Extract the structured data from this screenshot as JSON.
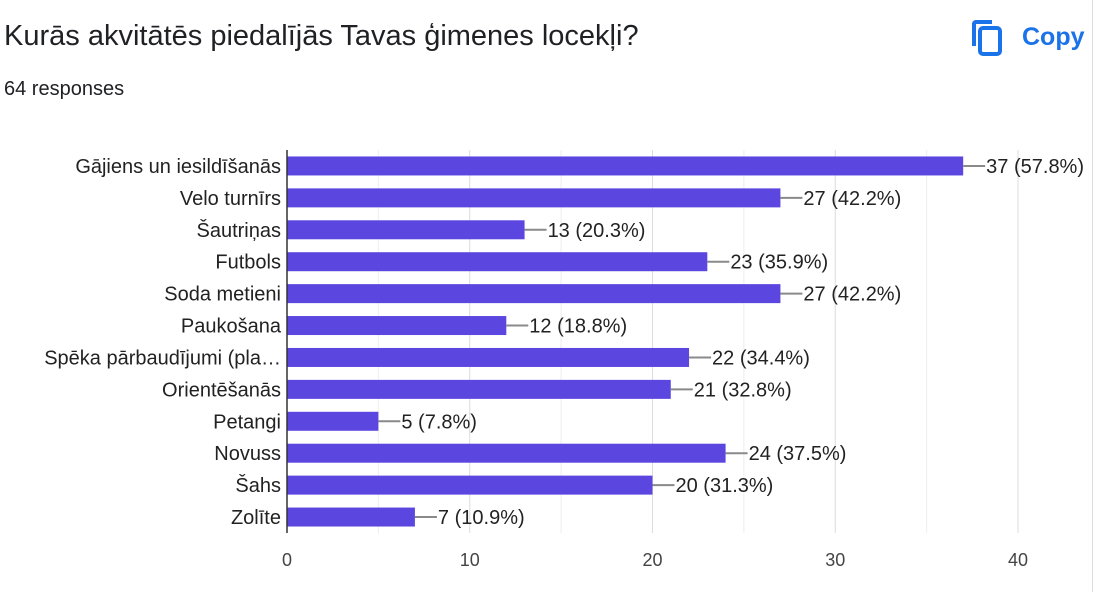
{
  "header": {
    "question": "Kurās akvitātēs piedalījās Tavas ģimenes locekļi?",
    "responses": "64 responses",
    "copy_label": "Copy",
    "copy_icon": "copy-icon"
  },
  "colors": {
    "bar": "#5b47e0",
    "accent": "#1a73e8",
    "grid": "#e0e0e0"
  },
  "chart_data": {
    "type": "bar",
    "orientation": "horizontal",
    "title": "",
    "xlabel": "",
    "ylabel": "",
    "xlim": [
      0,
      40
    ],
    "x_ticks": [
      0,
      10,
      20,
      30,
      40
    ],
    "grid": true,
    "categories": [
      "Gājiens un iesildīšanās",
      "Velo turnīrs",
      "Šautriņas",
      "Futbols",
      "Soda metieni",
      "Paukošana",
      "Spēka pārbaudījumi (pla…",
      "Orientēšanās",
      "Petangi",
      "Novuss",
      "Šahs",
      "Zolīte"
    ],
    "values": [
      37,
      27,
      13,
      23,
      27,
      12,
      22,
      21,
      5,
      24,
      20,
      7
    ],
    "value_labels": [
      "37 (57.8%)",
      "27 (42.2%)",
      "13 (20.3%)",
      "23 (35.9%)",
      "27 (42.2%)",
      "12 (18.8%)",
      "22 (34.4%)",
      "21 (32.8%)",
      "5 (7.8%)",
      "24 (37.5%)",
      "20 (31.3%)",
      "7 (10.9%)"
    ]
  }
}
